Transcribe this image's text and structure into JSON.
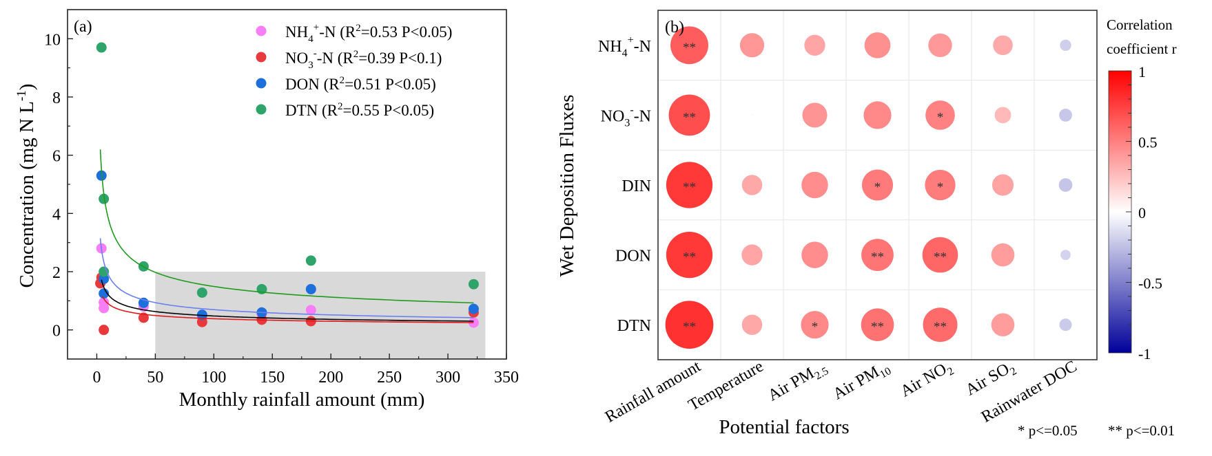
{
  "chart_data": [
    {
      "type": "scatter",
      "panel_label": "(a)",
      "title": "",
      "xlabel": "Monthly rainfall amount (mm)",
      "ylabel": "Concentration (mg N L",
      "ylabel_sup": "-1",
      "ylabel_close": ")",
      "xlim": [
        -25,
        350
      ],
      "ylim": [
        -1,
        11
      ],
      "xticks": [
        0,
        50,
        100,
        150,
        200,
        250,
        300,
        350
      ],
      "yticks": [
        0,
        2,
        4,
        6,
        8,
        10
      ],
      "grid": false,
      "legend_position": "top-right",
      "shaded_region": {
        "x": [
          50,
          332
        ],
        "y": [
          -1,
          2
        ],
        "color": "#d9d9d9"
      },
      "series": [
        {
          "name": "NH4+-N",
          "label_parts": {
            "main": "NH",
            "sub": "4",
            "sup": "+",
            "rest": "-N (R",
            "r2sup": "2",
            "stat": "=0.53 P<0.05)"
          },
          "color": "#f77ef7",
          "points": [
            [
              4,
              2.8
            ],
            [
              6,
              0.95
            ],
            [
              6,
              0.75
            ],
            [
              40,
              0.8
            ],
            [
              90,
              0.45
            ],
            [
              141,
              0.55
            ],
            [
              183,
              0.68
            ],
            [
              322,
              0.25
            ]
          ]
        },
        {
          "name": "NO3--N",
          "label_parts": {
            "main": "NO",
            "sub": "3",
            "sup": "-",
            "rest": "-N (R",
            "r2sup": "2",
            "stat": "=0.39 P<0.1)"
          },
          "color": "#e8393c",
          "fit_color": "#e0191c",
          "fit": {
            "a": 2.07,
            "b": -0.366,
            "xmin": 5,
            "xmax": 322
          },
          "points": [
            [
              4,
              1.8
            ],
            [
              3,
              1.6
            ],
            [
              6,
              0.0
            ],
            [
              40,
              0.42
            ],
            [
              90,
              0.27
            ],
            [
              141,
              0.35
            ],
            [
              183,
              0.3
            ],
            [
              322,
              0.6
            ]
          ]
        },
        {
          "name": "DON",
          "label_parts": {
            "main": "DON (R",
            "sub": "",
            "sup": "",
            "rest": "",
            "r2sup": "2",
            "stat": "=0.51 P<0.05)"
          },
          "color": "#1d6fdc",
          "fit_color": "#6b7ff0",
          "fit": {
            "a": 5.06,
            "b": -0.431,
            "xmin": 3,
            "xmax": 322
          },
          "points": [
            [
              4,
              5.3
            ],
            [
              6,
              1.75
            ],
            [
              6,
              1.25
            ],
            [
              40,
              0.93
            ],
            [
              90,
              0.52
            ],
            [
              141,
              0.6
            ],
            [
              183,
              1.4
            ],
            [
              322,
              0.72
            ]
          ]
        },
        {
          "name": "DTN",
          "label_parts": {
            "main": "DTN (R",
            "sub": "",
            "sup": "",
            "rest": "",
            "r2sup": "2",
            "stat": "=0.55 P<0.05)"
          },
          "color": "#2ea36a",
          "fit_color": "#1e9a1e",
          "fit": {
            "a": 9.68,
            "b": -0.406,
            "xmin": 3,
            "xmax": 322
          },
          "points": [
            [
              4,
              9.7
            ],
            [
              6,
              4.5
            ],
            [
              6,
              2.0
            ],
            [
              40,
              2.18
            ],
            [
              90,
              1.28
            ],
            [
              141,
              1.4
            ],
            [
              183,
              2.38
            ],
            [
              322,
              1.57
            ]
          ]
        }
      ],
      "extra_fit": {
        "name": "DIN fit",
        "color": "#000000",
        "a": 2.99,
        "b": -0.398,
        "xmin": 4,
        "xmax": 322
      }
    },
    {
      "type": "heatmap",
      "panel_label": "(b)",
      "xlabel": "Potential factors",
      "ylabel": "Wet Deposition Fluxes",
      "rows": [
        {
          "main": "NH",
          "sub": "4",
          "sup": "+",
          "rest": "-N"
        },
        {
          "main": "NO",
          "sub": "3",
          "sup": "-",
          "rest": "-N"
        },
        {
          "main": "DIN",
          "sub": "",
          "sup": "",
          "rest": ""
        },
        {
          "main": "DON",
          "sub": "",
          "sup": "",
          "rest": ""
        },
        {
          "main": "DTN",
          "sub": "",
          "sup": "",
          "rest": ""
        }
      ],
      "columns": [
        {
          "main": "Rainfall amount",
          "sub": ""
        },
        {
          "main": "Temperature",
          "sub": ""
        },
        {
          "main": "Air PM",
          "sub": "2.5"
        },
        {
          "main": "Air PM",
          "sub": "10"
        },
        {
          "main": "Air NO",
          "sub": "2"
        },
        {
          "main": "Air SO",
          "sub": "2"
        },
        {
          "main": "Rainwater DOC",
          "sub": ""
        }
      ],
      "values": [
        [
          0.67,
          0.43,
          0.37,
          0.46,
          0.42,
          0.35,
          -0.2
        ],
        [
          0.73,
          0.03,
          0.44,
          0.49,
          0.52,
          0.29,
          -0.23
        ],
        [
          0.82,
          0.36,
          0.47,
          0.55,
          0.54,
          0.38,
          -0.24
        ],
        [
          0.82,
          0.37,
          0.47,
          0.57,
          0.63,
          0.41,
          -0.18
        ],
        [
          0.85,
          0.36,
          0.49,
          0.58,
          0.61,
          0.41,
          -0.22
        ]
      ],
      "significance": [
        [
          "**",
          "",
          "",
          "",
          "",
          "",
          ""
        ],
        [
          "**",
          "",
          "",
          "",
          "*",
          "",
          ""
        ],
        [
          "**",
          "",
          "",
          "*",
          "*",
          "",
          ""
        ],
        [
          "**",
          "",
          "",
          "**",
          "**",
          "",
          ""
        ],
        [
          "**",
          "",
          "*",
          "**",
          "**",
          "",
          ""
        ]
      ],
      "colorbar": {
        "title_line1": "Correlation",
        "title_line2": "coefficient r",
        "range": [
          -1,
          1
        ],
        "ticks": [
          {
            "v": 1,
            "label": "1"
          },
          {
            "v": 0.5,
            "label": "0.5"
          },
          {
            "v": 0,
            "label": "0"
          },
          {
            "v": -0.5,
            "label": "-0.5"
          },
          {
            "v": -1,
            "label": "-1"
          }
        ],
        "color_pos": "#ff0000",
        "color_zero": "#ffffff",
        "color_neg": "#00009a"
      },
      "significance_note_1": "* p<=0.05",
      "significance_note_2": "** p<=0.01"
    }
  ]
}
